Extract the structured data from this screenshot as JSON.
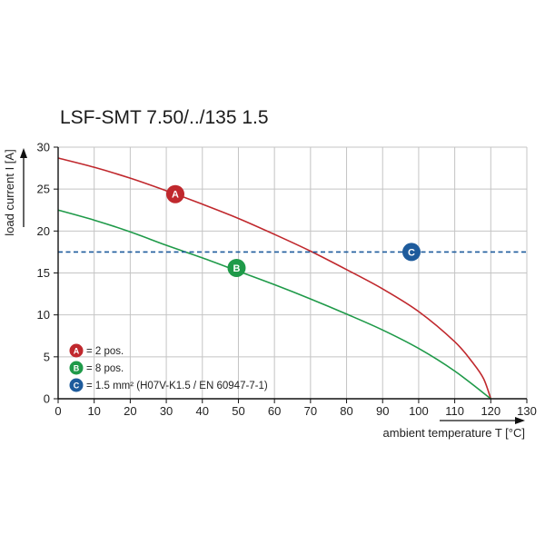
{
  "title": "LSF-SMT 7.50/../135 1.5",
  "colors": {
    "A": "#c0282d",
    "B": "#1f9a49",
    "C": "#1e5b9c",
    "grid": "#c4c4c4",
    "axis": "#111111"
  },
  "legend": [
    {
      "marker": "A",
      "text": "= 2 pos."
    },
    {
      "marker": "B",
      "text": "= 8 pos."
    },
    {
      "marker": "C",
      "text": "= 1.5 mm² (H07V-K1.5 / EN 60947-7-1)"
    }
  ],
  "chart_data": {
    "type": "line",
    "title": "LSF-SMT 7.50/../135 1.5",
    "xlabel": "ambient temperature T [°C]",
    "ylabel": "load current I [A]",
    "xlim": [
      0,
      130
    ],
    "ylim": [
      0,
      30
    ],
    "xticks": [
      0,
      10,
      20,
      30,
      40,
      50,
      60,
      70,
      80,
      90,
      100,
      110,
      120,
      130
    ],
    "yticks": [
      0,
      5,
      10,
      15,
      20,
      25,
      30
    ],
    "grid": true,
    "series": [
      {
        "name": "A",
        "marker_label": "A",
        "marker_at": [
          32.5,
          24.4
        ],
        "style": "solid",
        "x": [
          0,
          10,
          20,
          30,
          40,
          50,
          60,
          70,
          80,
          90,
          100,
          110,
          115,
          118,
          120
        ],
        "y": [
          28.7,
          27.6,
          26.3,
          24.8,
          23.2,
          21.5,
          19.6,
          17.6,
          15.4,
          13.1,
          10.4,
          6.8,
          4.3,
          2.4,
          0
        ]
      },
      {
        "name": "B",
        "marker_label": "B",
        "marker_at": [
          49.5,
          15.6
        ],
        "style": "solid",
        "x": [
          0,
          10,
          20,
          30,
          40,
          50,
          60,
          70,
          80,
          90,
          100,
          110,
          120
        ],
        "y": [
          22.5,
          21.3,
          19.9,
          18.3,
          16.8,
          15.2,
          13.6,
          11.9,
          10.1,
          8.2,
          6.0,
          3.3,
          0
        ]
      },
      {
        "name": "C",
        "marker_label": "C",
        "marker_at": [
          98,
          17.5
        ],
        "style": "dashed",
        "x": [
          0,
          130
        ],
        "y": [
          17.5,
          17.5
        ]
      }
    ]
  }
}
